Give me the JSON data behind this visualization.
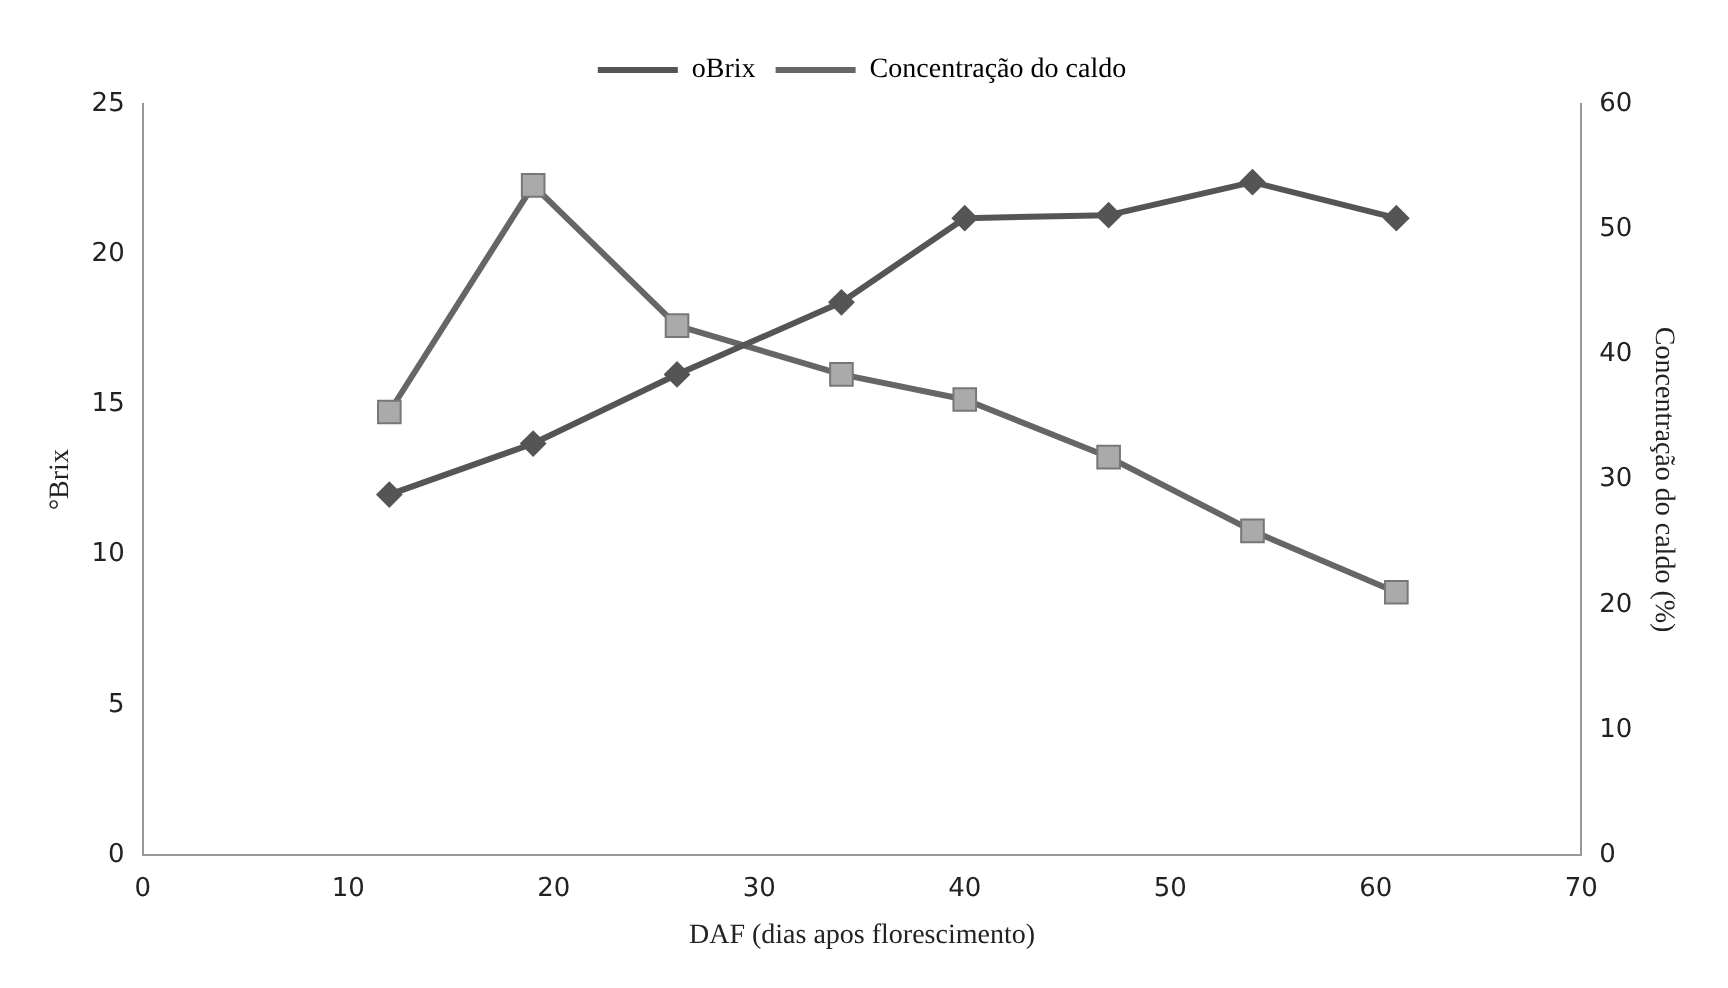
{
  "chart_data": {
    "type": "line",
    "xlabel": "DAF (dias apos florescimento)",
    "ylabel": "°Brix",
    "y2label": "Concentração do caldo (%)",
    "xlim": [
      0,
      70
    ],
    "xticks": [
      0,
      10,
      20,
      30,
      40,
      50,
      60,
      70
    ],
    "ylim": [
      0,
      25
    ],
    "yticks": [
      0,
      5,
      10,
      15,
      20,
      25
    ],
    "y2lim": [
      0,
      60
    ],
    "y2ticks": [
      0,
      10,
      20,
      30,
      40,
      50,
      60
    ],
    "x": [
      12,
      19,
      26,
      34,
      40,
      47,
      54,
      61
    ],
    "series": [
      {
        "name": "oBrix",
        "color": "#555555",
        "marker": "diamond",
        "values": [
          12.0,
          13.7,
          16.0,
          18.4,
          21.2,
          21.3,
          22.4,
          21.2
        ]
      },
      {
        "name": "Concentração do caldo",
        "color": "#aaaaaa",
        "marker": "square",
        "axis": "y2",
        "values": [
          35.4,
          53.5,
          42.3,
          38.4,
          36.4,
          31.8,
          25.9,
          21.0
        ]
      }
    ],
    "grid": false,
    "legend": "top",
    "line_style": "solid"
  }
}
